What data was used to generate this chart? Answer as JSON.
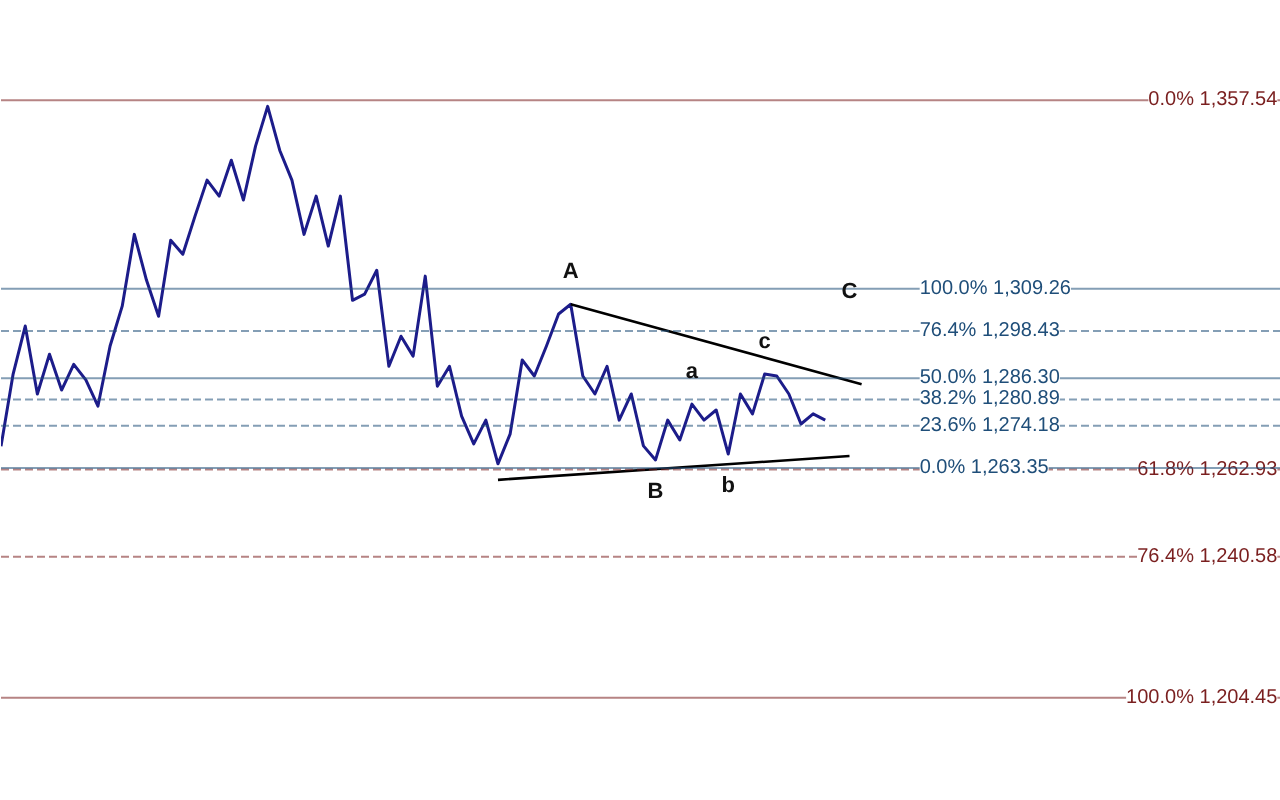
{
  "chart_data": {
    "type": "line",
    "tick_labels": false,
    "grid": false,
    "ylim": [
      1178,
      1383
    ],
    "categories": [
      null,
      null,
      null,
      null,
      null,
      null,
      null,
      null,
      null,
      null,
      null,
      null,
      null,
      null,
      null,
      null,
      null,
      null,
      null,
      null,
      null,
      null,
      null,
      null,
      null,
      null,
      null,
      null,
      null,
      null,
      null,
      null,
      null,
      null,
      null,
      null,
      null,
      null,
      null,
      null,
      null,
      null,
      null,
      null,
      null,
      null,
      null,
      null,
      null,
      null,
      null,
      null,
      null,
      null,
      null,
      null,
      null,
      null,
      null,
      null,
      null,
      null,
      null,
      null,
      null,
      null,
      null,
      null,
      null,
      null,
      null,
      null,
      null,
      null,
      null,
      null,
      null,
      null,
      null,
      null,
      null,
      null,
      null,
      null,
      null,
      null,
      null,
      null,
      null,
      null,
      null,
      null,
      null,
      null,
      null,
      null,
      null,
      null,
      null,
      null,
      null,
      null,
      null,
      null,
      null,
      null
    ],
    "series": [
      {
        "color": "#1c1c8a",
        "values": [
          1268.9,
          1287.4,
          1299.7,
          1282.3,
          1292.5,
          1283.3,
          1289.9,
          1285.9,
          1279.2,
          1294.6,
          1304.8,
          1323.2,
          1311.5,
          1302.2,
          1321.7,
          1318.1,
          1327.8,
          1337.1,
          1333.0,
          1342.2,
          1332.0,
          1345.8,
          1356.0,
          1344.7,
          1337.1,
          1323.2,
          1333.0,
          1320.2,
          1333.0,
          1306.3,
          1307.9,
          1314.0,
          1289.4,
          1297.1,
          1292.0,
          1312.5,
          1284.3,
          1289.4,
          1276.6,
          1269.5,
          1275.6,
          1264.4,
          1272.0,
          1291.0,
          1286.9,
          1294.6,
          1302.8,
          1305.3,
          1286.9,
          1282.3,
          1289.4,
          1275.6,
          1282.3,
          1269.0,
          1265.4,
          1275.6,
          1270.5,
          1279.7,
          1275.6,
          1278.2,
          1266.9,
          1282.3,
          1277.2,
          1287.4,
          1286.9,
          1282.3,
          1274.6,
          1277.2,
          1275.6,
          null,
          null,
          null,
          null,
          null,
          null,
          null,
          null,
          null,
          null,
          null,
          null,
          null,
          null,
          null,
          null,
          null,
          null,
          null,
          null,
          null,
          null,
          null,
          null,
          null,
          null,
          null,
          null,
          null,
          null,
          null,
          null,
          null,
          null,
          null,
          null,
          null
        ],
        "value_labels": [
          null,
          null,
          null,
          null,
          null,
          null,
          null,
          null,
          null,
          null,
          null,
          null,
          null,
          null,
          null,
          null,
          null,
          null,
          null,
          null,
          null,
          null,
          null,
          null,
          null,
          null,
          null,
          null,
          null,
          null,
          null,
          null,
          null,
          null,
          null,
          null,
          null,
          null,
          null,
          null,
          null,
          null,
          null,
          null,
          null,
          null,
          null,
          "A",
          null,
          null,
          null,
          null,
          null,
          null,
          "B",
          null,
          null,
          "a",
          null,
          null,
          "b",
          null,
          null,
          "c",
          null,
          null,
          null,
          null,
          null,
          null,
          null,
          null,
          null,
          null,
          null,
          null,
          null,
          null,
          null,
          null,
          null,
          null,
          null,
          null,
          null,
          null,
          null,
          null,
          null,
          null,
          null,
          null,
          null,
          null,
          null,
          null,
          null,
          null,
          null,
          null,
          null,
          null,
          null,
          null,
          null,
          null
        ]
      },
      {
        "type": "line",
        "color": "#000000",
        "values": [
          null,
          null,
          null,
          null,
          null,
          null,
          null,
          null,
          null,
          null,
          null,
          null,
          null,
          null,
          null,
          null,
          null,
          null,
          null,
          null,
          null,
          null,
          null,
          null,
          null,
          null,
          null,
          null,
          null,
          null,
          null,
          null,
          null,
          null,
          null,
          null,
          null,
          null,
          null,
          null,
          null,
          null,
          null,
          null,
          null,
          null,
          null,
          1305.3,
          null,
          null,
          null,
          null,
          null,
          null,
          null,
          null,
          null,
          null,
          null,
          null,
          null,
          null,
          null,
          null,
          null,
          null,
          null,
          null,
          null,
          null,
          null,
          1284.8,
          null,
          null,
          null,
          null,
          null,
          null,
          null,
          null,
          null,
          null,
          null,
          null,
          null,
          null,
          null,
          null,
          null,
          null,
          null,
          null,
          null,
          null,
          null,
          null,
          null,
          null,
          null,
          null,
          null,
          null,
          null,
          null,
          null,
          null
        ],
        "value_labels": [
          null,
          null,
          null,
          null,
          null,
          null,
          null,
          null,
          null,
          null,
          null,
          null,
          null,
          null,
          null,
          null,
          null,
          null,
          null,
          null,
          null,
          null,
          null,
          null,
          null,
          null,
          null,
          null,
          null,
          null,
          null,
          null,
          null,
          null,
          null,
          null,
          null,
          null,
          null,
          null,
          null,
          null,
          null,
          null,
          null,
          null,
          null,
          null,
          null,
          null,
          null,
          null,
          null,
          null,
          null,
          null,
          null,
          null,
          null,
          null,
          null,
          null,
          null,
          null,
          null,
          null,
          null,
          null,
          null,
          null,
          "C",
          null,
          null,
          null,
          null,
          null,
          null,
          null,
          null,
          null,
          null,
          null,
          null,
          null,
          null,
          null,
          null,
          null,
          null,
          null,
          null,
          null,
          null,
          null,
          null,
          null,
          null,
          null,
          null,
          null,
          null,
          null,
          null,
          null,
          null,
          null
        ]
      },
      {
        "type": "line",
        "color": "#000000",
        "values": [
          null,
          null,
          null,
          null,
          null,
          null,
          null,
          null,
          null,
          null,
          null,
          null,
          null,
          null,
          null,
          null,
          null,
          null,
          null,
          null,
          null,
          null,
          null,
          null,
          null,
          null,
          null,
          null,
          null,
          null,
          null,
          null,
          null,
          null,
          null,
          null,
          null,
          null,
          null,
          null,
          null,
          1260.3,
          null,
          null,
          null,
          null,
          null,
          null,
          null,
          null,
          null,
          null,
          null,
          null,
          null,
          null,
          null,
          null,
          null,
          null,
          null,
          null,
          null,
          null,
          null,
          null,
          null,
          null,
          null,
          null,
          1266.4,
          null,
          null,
          null,
          null,
          null,
          null,
          null,
          null,
          null,
          null,
          null,
          null,
          null,
          null,
          null,
          null,
          null,
          null,
          null,
          null,
          null,
          null,
          null,
          null,
          null,
          null,
          null,
          null,
          null,
          null,
          null,
          null,
          null,
          null,
          null
        ]
      }
    ],
    "ref_lines": [
      {
        "axis": "y",
        "value": 1357.54,
        "label": "0.0% 1,357.54",
        "color": "#7a1f1f",
        "line_style": "solid"
      },
      {
        "axis": "y",
        "value": 1262.93,
        "label": "61.8% 1,262.93",
        "color": "#7a1f1f",
        "line_style": "dashed"
      },
      {
        "axis": "y",
        "value": 1240.58,
        "label": "76.4% 1,240.58",
        "color": "#7a1f1f",
        "line_style": "dashed"
      },
      {
        "axis": "y",
        "value": 1204.45,
        "label": "100.0% 1,204.45",
        "color": "#7a1f1f",
        "line_style": "solid"
      },
      {
        "axis": "y",
        "value": 1309.26,
        "label": "100.0% 1,309.26",
        "color": "#1f4e79",
        "line_style": "solid"
      },
      {
        "axis": "y",
        "value": 1298.43,
        "label": "76.4% 1,298.43",
        "color": "#1f4e79",
        "line_style": "dashed"
      },
      {
        "axis": "y",
        "value": 1286.3,
        "label": "50.0% 1,286.30",
        "color": "#1f4e79",
        "line_style": "solid"
      },
      {
        "axis": "y",
        "value": 1280.89,
        "label": "38.2% 1,280.89",
        "color": "#1f4e79",
        "line_style": "dashed"
      },
      {
        "axis": "y",
        "value": 1274.18,
        "label": "23.6% 1,274.18",
        "color": "#1f4e79",
        "line_style": "dashed"
      },
      {
        "axis": "y",
        "value": 1263.35,
        "label": "0.0% 1,263.35",
        "color": "#1f4e79",
        "line_style": "solid"
      }
    ]
  }
}
